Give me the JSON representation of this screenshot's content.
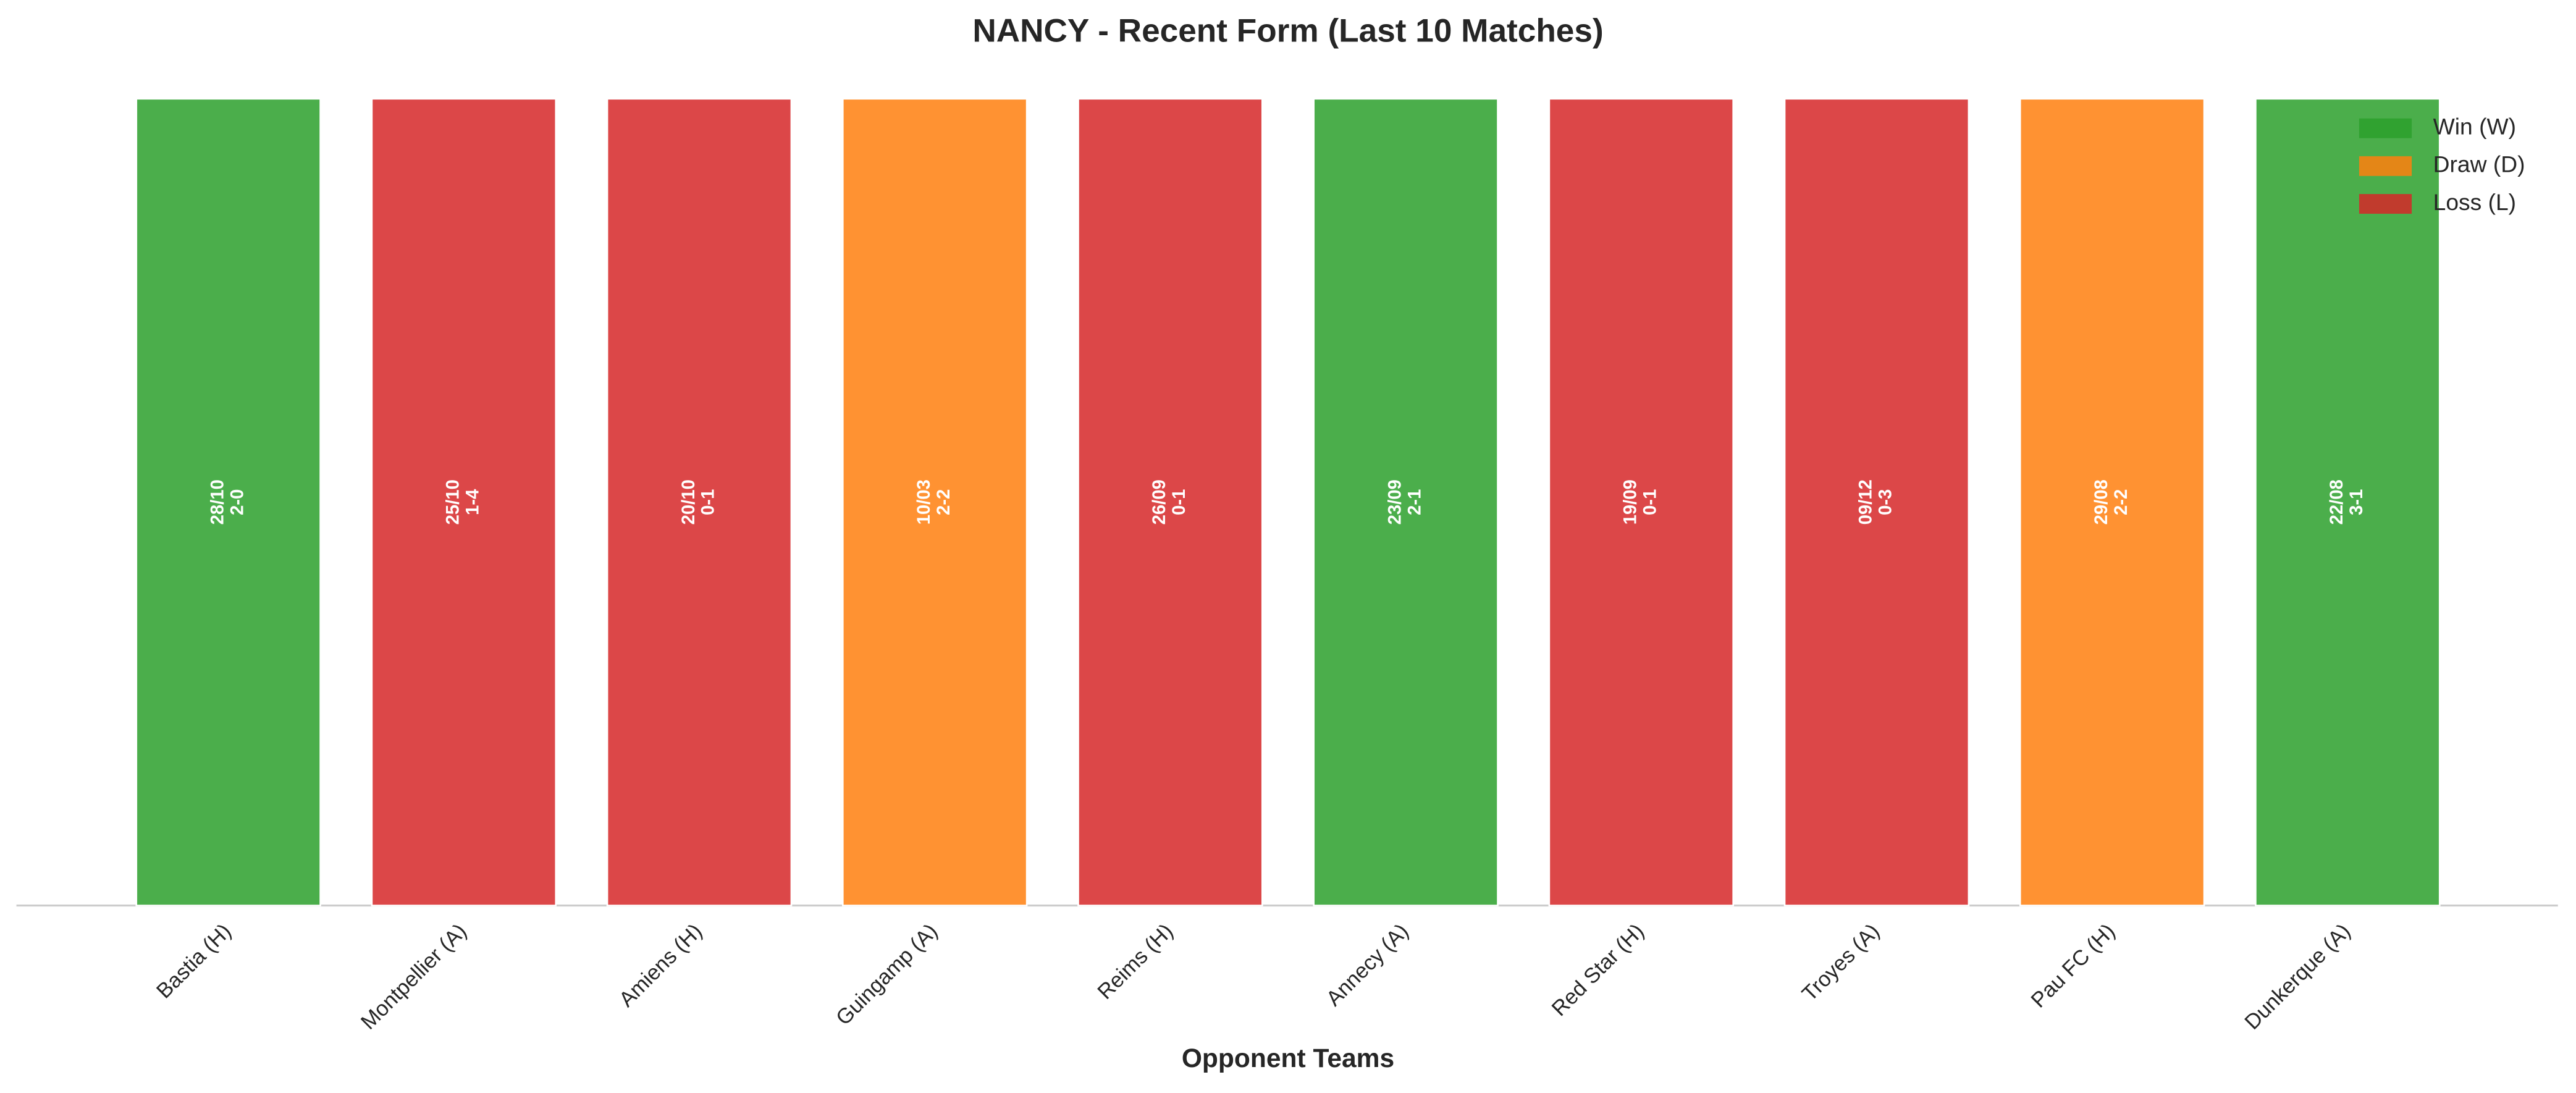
{
  "chart_data": {
    "type": "bar",
    "title": "NANCY - Recent Form (Last 10 Matches)",
    "x_label": "Opponent Teams",
    "categories": [
      "Bastia (H)",
      "Montpellier (A)",
      "Amiens (H)",
      "Guingamp (A)",
      "Reims (H)",
      "Annecy (A)",
      "Red Star (H)",
      "Troyes (A)",
      "Pau FC (H)",
      "Dunkerque (A)"
    ],
    "values": [
      1,
      1,
      1,
      1,
      1,
      1,
      1,
      1,
      1,
      1
    ],
    "dates": [
      "28/10",
      "25/10",
      "20/10",
      "10/03",
      "26/09",
      "23/09",
      "19/09",
      "09/12",
      "29/08",
      "22/08"
    ],
    "scores": [
      "2-0",
      "1-4",
      "0-1",
      "2-2",
      "0-1",
      "2-1",
      "0-1",
      "0-3",
      "2-2",
      "3-1"
    ],
    "colors": [
      "#2ca02c",
      "#d62728",
      "#d62728",
      "#ff7f0e",
      "#d62728",
      "#2ca02c",
      "#d62728",
      "#d62728",
      "#ff7f0e",
      "#2ca02c"
    ],
    "ylim": [
      0,
      1
    ],
    "legend_position": "upper right",
    "legend": [
      {
        "name": "Win (W)",
        "color": "#2ca02c"
      },
      {
        "name": "Draw (D)",
        "color": "#ff7f0e"
      },
      {
        "name": "Loss (L)",
        "color": "#d62728"
      }
    ]
  }
}
